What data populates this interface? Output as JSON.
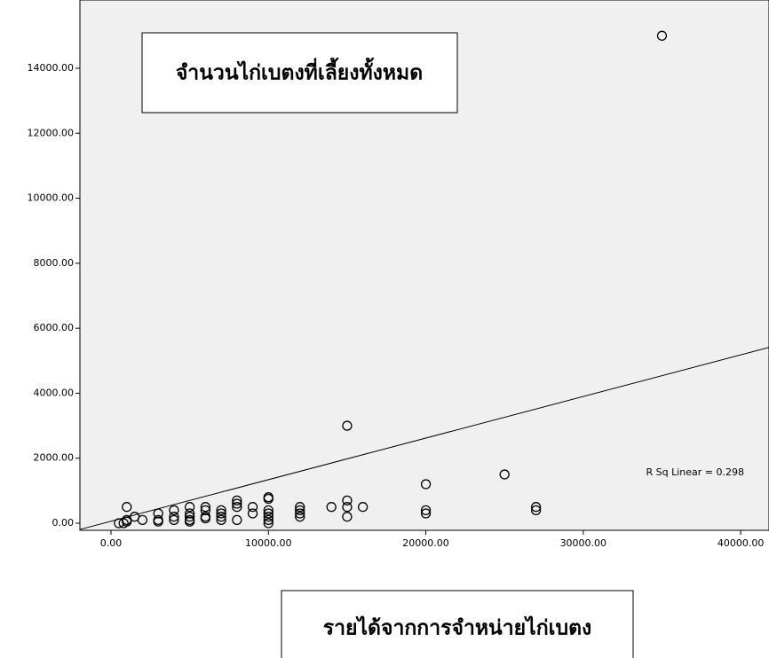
{
  "chart_data": {
    "type": "scatter",
    "x_label": "รายได้จากการจำหน่ายไก่เบตง",
    "y_label": "จำนวนไก่เบตงที่เลี้ยงทั้งหมด",
    "annotation": "R Sq Linear = 0.298",
    "fit_line": {
      "slope": 0.128,
      "intercept": 60
    },
    "xlim": [
      -1975,
      41800
    ],
    "ylim": [
      -218,
      16100
    ],
    "xticks": [
      {
        "value": 0,
        "label": "0.00"
      },
      {
        "value": 10000,
        "label": "10000.00"
      },
      {
        "value": 20000,
        "label": "20000.00"
      },
      {
        "value": 30000,
        "label": "30000.00"
      },
      {
        "value": 40000,
        "label": "40000.00"
      }
    ],
    "yticks": [
      {
        "value": 0,
        "label": "0.00"
      },
      {
        "value": 2000,
        "label": "2000.00"
      },
      {
        "value": 4000,
        "label": "4000.00"
      },
      {
        "value": 6000,
        "label": "6000.00"
      },
      {
        "value": 8000,
        "label": "8000.00"
      },
      {
        "value": 10000,
        "label": "10000.00"
      },
      {
        "value": 12000,
        "label": "12000.00"
      },
      {
        "value": 14000,
        "label": "14000.00"
      }
    ],
    "color": "#000000",
    "x": [
      35000,
      15000,
      25000,
      20000,
      20000,
      20000,
      27000,
      27000,
      16000,
      15000,
      15000,
      15000,
      14000,
      12000,
      12000,
      12000,
      12000,
      10000,
      10000,
      10000,
      10000,
      10000,
      10000,
      10000,
      9000,
      9000,
      8000,
      8000,
      8000,
      8000,
      7000,
      7000,
      7000,
      7000,
      6000,
      6000,
      6000,
      5000,
      5000,
      5000,
      5000,
      5000,
      4000,
      4000,
      4000,
      3000,
      3000,
      2000,
      1500,
      1000,
      1000,
      1000,
      500,
      800,
      3000,
      6000
    ],
    "values": [
      15000,
      3000,
      1500,
      1200,
      400,
      300,
      500,
      400,
      500,
      700,
      500,
      200,
      500,
      500,
      400,
      300,
      200,
      800,
      750,
      400,
      300,
      200,
      100,
      0,
      500,
      300,
      700,
      600,
      500,
      100,
      400,
      300,
      200,
      100,
      500,
      400,
      200,
      500,
      300,
      200,
      100,
      50,
      400,
      200,
      100,
      300,
      100,
      100,
      200,
      500,
      100,
      50,
      0,
      0,
      50,
      150
    ]
  }
}
